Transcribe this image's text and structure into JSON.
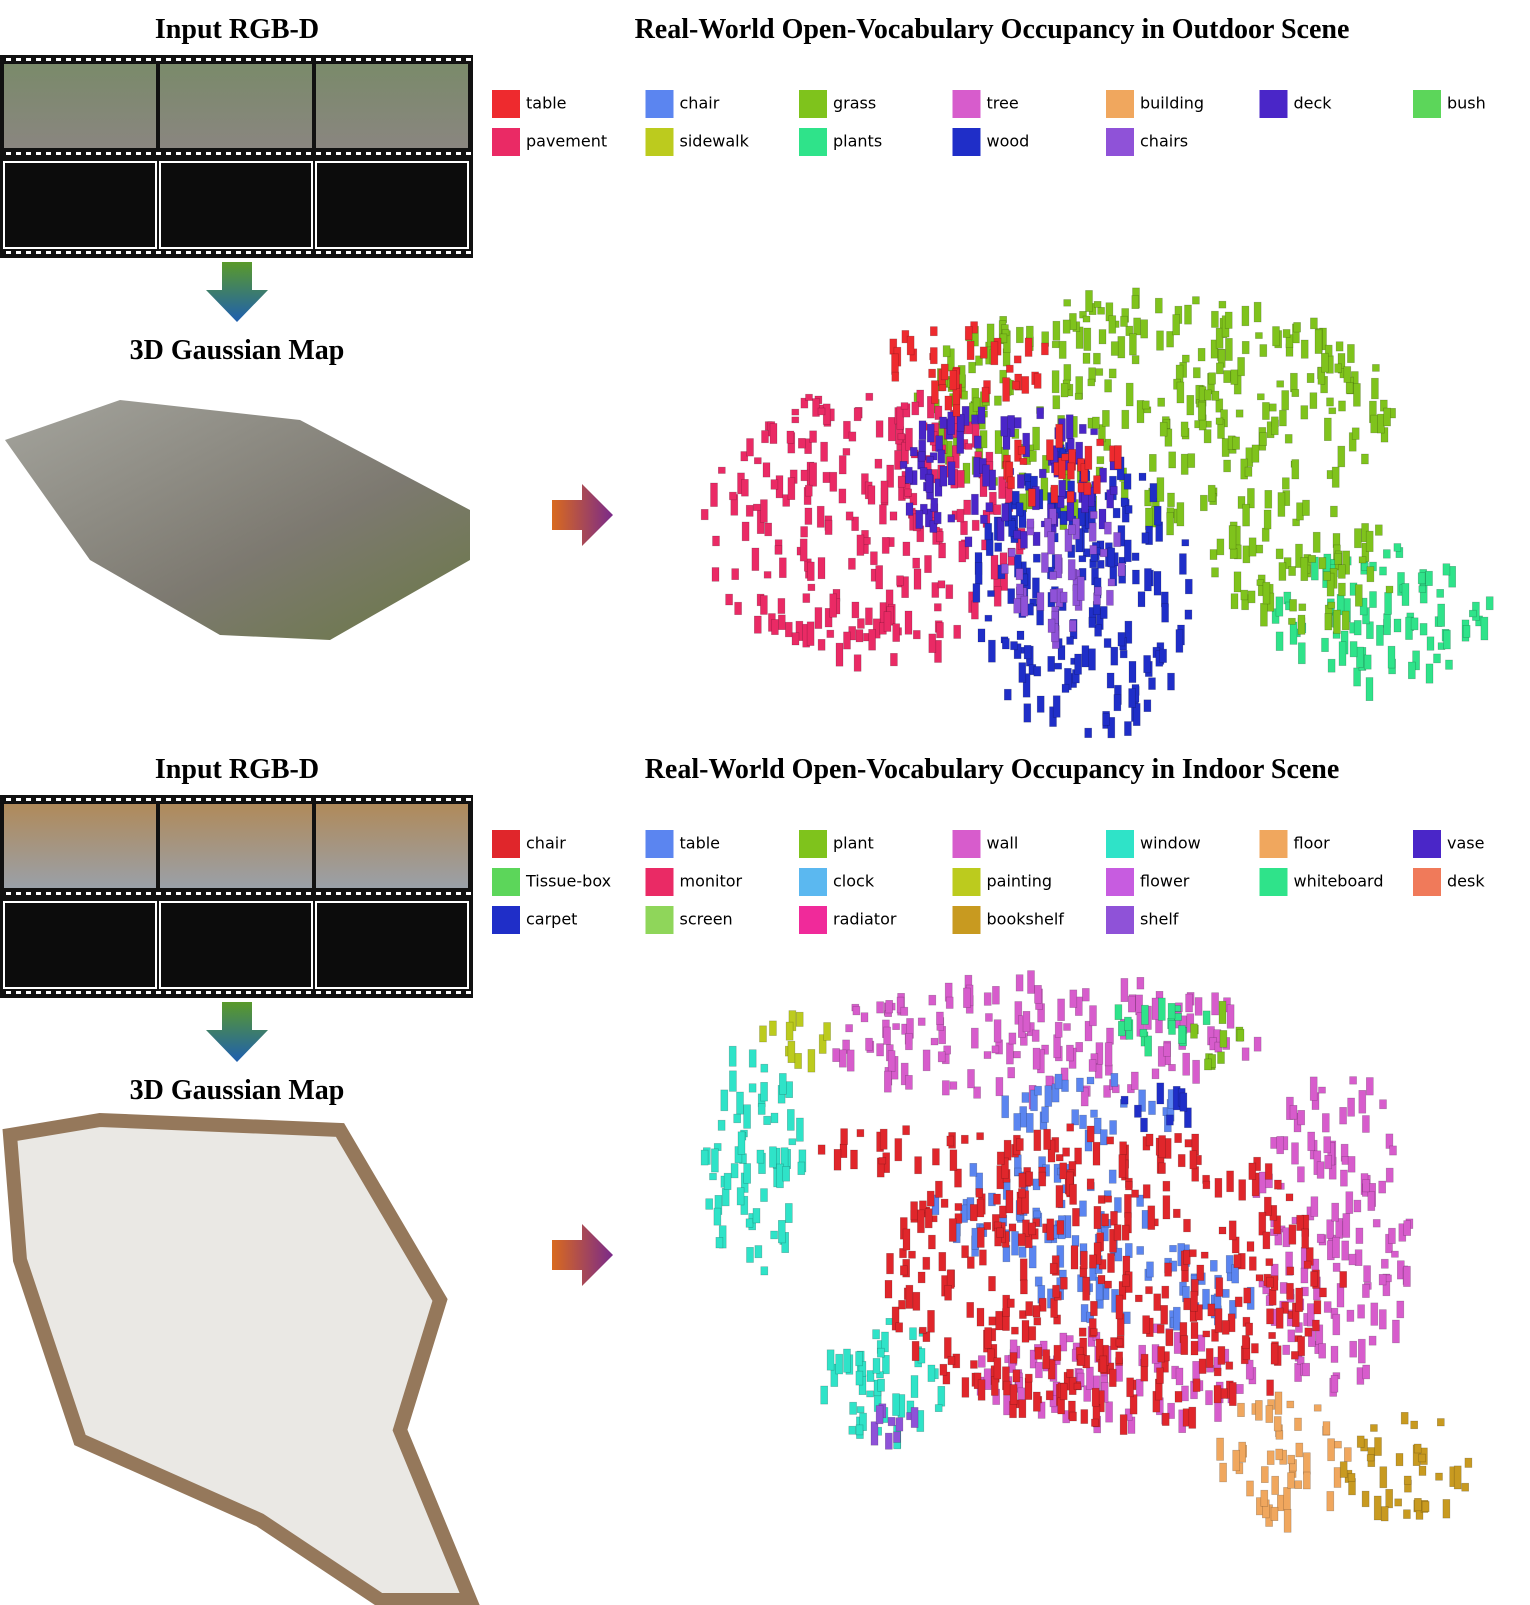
{
  "panels": [
    {
      "input_title": "Input RGB-D",
      "map_title": "3D Gaussian Map",
      "occupancy_title": "Real-World Open-Vocabulary Occupancy in Outdoor Scene",
      "legend": [
        {
          "label": "table",
          "color": "#ee2a2e"
        },
        {
          "label": "chair",
          "color": "#5b85f0"
        },
        {
          "label": "grass",
          "color": "#7fc31c"
        },
        {
          "label": "tree",
          "color": "#d75ccc"
        },
        {
          "label": "building",
          "color": "#f0a75e"
        },
        {
          "label": "deck",
          "color": "#4a26c8"
        },
        {
          "label": "bush",
          "color": "#5cd65a"
        },
        {
          "label": "pavement",
          "color": "#ea2a65"
        },
        {
          "label": "sidewalk",
          "color": "#bccb1e"
        },
        {
          "label": "plants",
          "color": "#2fe38a"
        },
        {
          "label": "wood",
          "color": "#1f2ec8"
        },
        {
          "label": "chairs",
          "color": "#8f52d8"
        }
      ]
    },
    {
      "input_title": "Input RGB-D",
      "map_title": "3D Gaussian Map",
      "occupancy_title": "Real-World Open-Vocabulary Occupancy in Indoor Scene",
      "legend": [
        {
          "label": "chair",
          "color": "#e0262b"
        },
        {
          "label": "table",
          "color": "#5b85f0"
        },
        {
          "label": "plant",
          "color": "#7fc31c"
        },
        {
          "label": "wall",
          "color": "#d75ccc"
        },
        {
          "label": "window",
          "color": "#2fe3c8"
        },
        {
          "label": "floor",
          "color": "#f0a75e"
        },
        {
          "label": "vase",
          "color": "#4a26c8"
        },
        {
          "label": "Tissue-box",
          "color": "#5cd65a"
        },
        {
          "label": "monitor",
          "color": "#ea2a65"
        },
        {
          "label": "clock",
          "color": "#5bb8f0"
        },
        {
          "label": "painting",
          "color": "#bccb1e"
        },
        {
          "label": "flower",
          "color": "#c75ce0"
        },
        {
          "label": "whiteboard",
          "color": "#2fe38a"
        },
        {
          "label": "desk",
          "color": "#f07a5a"
        },
        {
          "label": "carpet",
          "color": "#1f2ec8"
        },
        {
          "label": "screen",
          "color": "#8fd65a"
        },
        {
          "label": "radiator",
          "color": "#f02a9a"
        },
        {
          "label": "bookshelf",
          "color": "#c89a20"
        },
        {
          "label": "shelf",
          "color": "#8f52d8"
        }
      ]
    }
  ]
}
